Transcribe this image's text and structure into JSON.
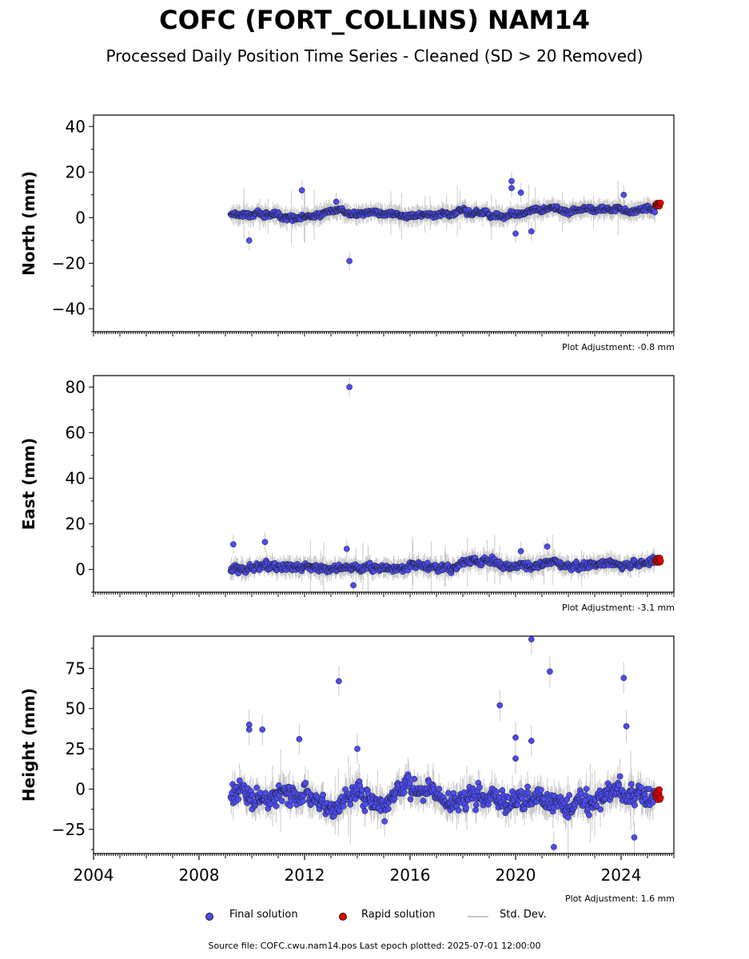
{
  "header": {
    "title": "COFC (FORT_COLLINS) NAM14",
    "subtitle": "Processed Daily Position Time Series - Cleaned (SD > 20 Removed)"
  },
  "legend": {
    "final": "Final solution",
    "rapid": "Rapid solution",
    "stddev": "Std. Dev."
  },
  "footer": {
    "text": "Source file: COFC.cwu.nam14.pos  Last epoch plotted: 2025-07-01 12:00:00"
  },
  "colors": {
    "final": "#4b4bf0",
    "rapid": "#e00000",
    "stddev": "#bdbdbd",
    "edge": "#1a1a1a"
  },
  "chart_data": [
    {
      "type": "scatter",
      "ylabel": "North (mm)",
      "adjustment": "Plot Adjustment: -0.8 mm",
      "xlim": [
        2004,
        2026
      ],
      "ylim": [
        -50,
        45
      ],
      "yticks": [
        -40,
        -20,
        0,
        20,
        40
      ],
      "data_start": 2009.2,
      "trend": [
        1.0,
        3.5
      ],
      "noise": 1.2,
      "std_halfwidth": 3.5,
      "rapid": {
        "range": [
          2025.3,
          2025.5
        ],
        "y": [
          5,
          6.5
        ]
      },
      "outliers": [
        {
          "x": 2009.9,
          "y": -10
        },
        {
          "x": 2011.9,
          "y": 12
        },
        {
          "x": 2013.7,
          "y": -19
        },
        {
          "x": 2013.2,
          "y": 7
        },
        {
          "x": 2019.85,
          "y": 16
        },
        {
          "x": 2019.85,
          "y": 13
        },
        {
          "x": 2020.2,
          "y": 11
        },
        {
          "x": 2020.0,
          "y": -7
        },
        {
          "x": 2020.6,
          "y": -6
        },
        {
          "x": 2024.1,
          "y": 10
        }
      ]
    },
    {
      "type": "scatter",
      "ylabel": "East (mm)",
      "adjustment": "Plot Adjustment: -3.1 mm",
      "xlim": [
        2004,
        2026
      ],
      "ylim": [
        -10,
        85
      ],
      "yticks": [
        0,
        20,
        40,
        60,
        80
      ],
      "data_start": 2009.2,
      "trend": [
        1.0,
        3.5
      ],
      "noise": 1.6,
      "std_halfwidth": 3.5,
      "rapid": {
        "range": [
          2025.3,
          2025.5
        ],
        "y": [
          3,
          5
        ]
      },
      "outliers": [
        {
          "x": 2009.3,
          "y": 11
        },
        {
          "x": 2010.5,
          "y": 12
        },
        {
          "x": 2013.7,
          "y": 80
        },
        {
          "x": 2013.85,
          "y": -7
        },
        {
          "x": 2013.6,
          "y": 9
        },
        {
          "x": 2020.2,
          "y": 8
        },
        {
          "x": 2021.2,
          "y": 10
        }
      ]
    },
    {
      "type": "scatter",
      "ylabel": "Height (mm)",
      "adjustment": "Plot Adjustment: 1.6 mm",
      "xlim": [
        2004,
        2026
      ],
      "ylim": [
        -40,
        95
      ],
      "yticks": [
        -25,
        0,
        25,
        50,
        75
      ],
      "data_start": 2009.2,
      "trend": [
        0,
        -3
      ],
      "noise": 7,
      "std_halfwidth": 8,
      "rapid": {
        "range": [
          2025.3,
          2025.5
        ],
        "y": [
          -8,
          0
        ]
      },
      "outliers": [
        {
          "x": 2009.9,
          "y": 40
        },
        {
          "x": 2009.9,
          "y": 37
        },
        {
          "x": 2010.4,
          "y": 37
        },
        {
          "x": 2011.8,
          "y": 31
        },
        {
          "x": 2013.3,
          "y": 67
        },
        {
          "x": 2014.0,
          "y": 25
        },
        {
          "x": 2019.4,
          "y": 52
        },
        {
          "x": 2020.0,
          "y": 32
        },
        {
          "x": 2020.0,
          "y": 19
        },
        {
          "x": 2020.6,
          "y": 93
        },
        {
          "x": 2020.6,
          "y": 30
        },
        {
          "x": 2021.3,
          "y": 73
        },
        {
          "x": 2021.45,
          "y": -36
        },
        {
          "x": 2024.1,
          "y": 69
        },
        {
          "x": 2024.2,
          "y": 39
        },
        {
          "x": 2024.5,
          "y": -30
        }
      ],
      "xticks": [
        2004,
        2008,
        2012,
        2016,
        2020,
        2024
      ]
    }
  ]
}
